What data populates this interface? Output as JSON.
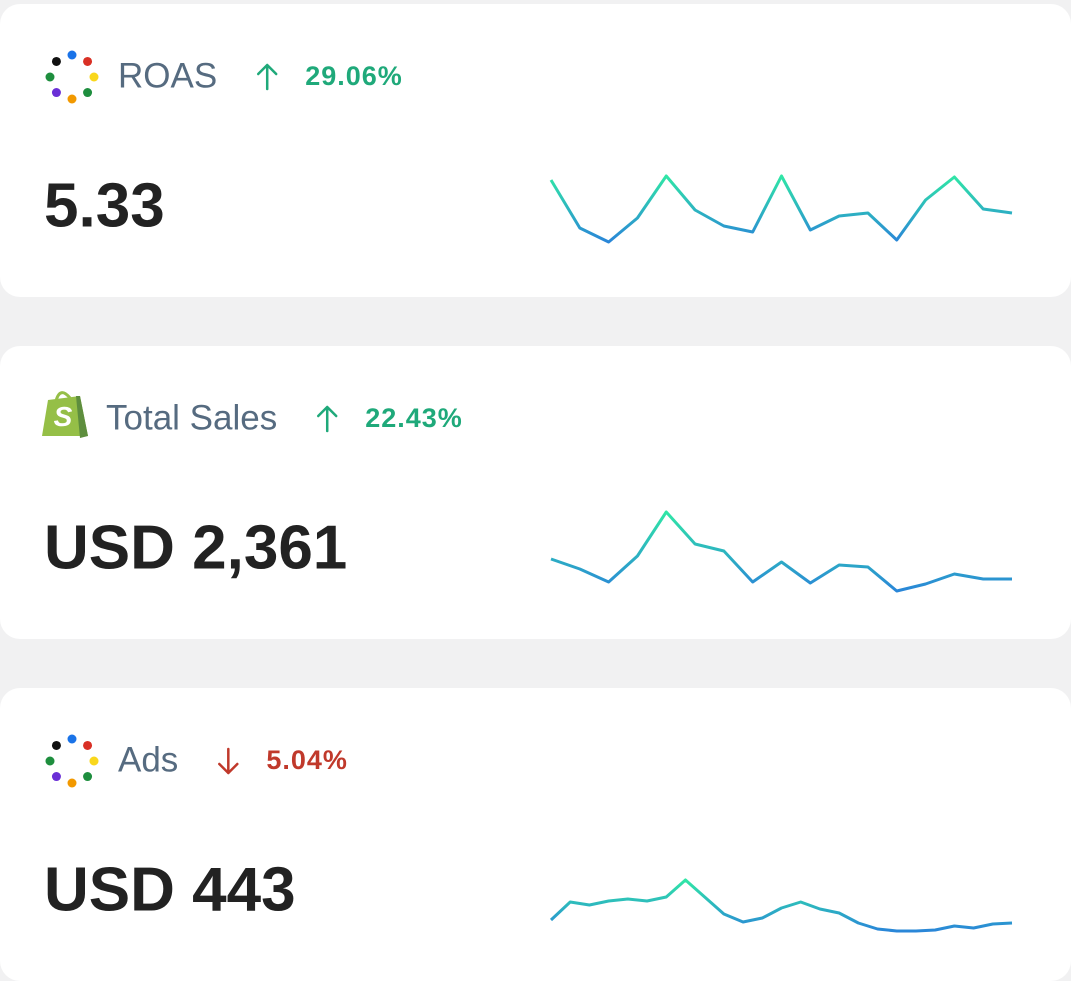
{
  "cards": [
    {
      "title": "ROAS",
      "trend": "up",
      "change": "29.06%",
      "value": "5.33",
      "icon": "dots",
      "sparkline": [
        78,
        30,
        16,
        40,
        82,
        48,
        32,
        26,
        82,
        28,
        42,
        45,
        18,
        58,
        81,
        49,
        45
      ]
    },
    {
      "title": "Total Sales",
      "trend": "up",
      "change": "22.43%",
      "value": "USD 2,361",
      "icon": "shop",
      "sparkline": [
        41,
        31,
        18,
        44,
        88,
        56,
        49,
        18,
        38,
        17,
        35,
        33,
        9,
        16,
        26,
        21,
        21
      ]
    },
    {
      "title": "Ads",
      "trend": "down",
      "change": "5.04%",
      "value": "USD 443",
      "icon": "dots",
      "sparkline": [
        22,
        40,
        37,
        41,
        43,
        41,
        45,
        62,
        45,
        28,
        20,
        24,
        34,
        40,
        33,
        29,
        19,
        13,
        11,
        11,
        12,
        16,
        14,
        18,
        19
      ]
    }
  ]
}
